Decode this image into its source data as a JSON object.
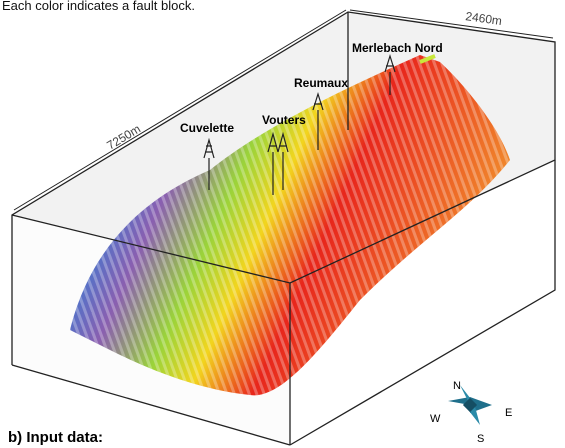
{
  "caption": "Each color indicates a fault block.",
  "dimensions": {
    "width": "2460m",
    "length": "7250m"
  },
  "wells": [
    "Cuvelette",
    "Vouters",
    "Reumaux",
    "Merlebach Nord"
  ],
  "compass": {
    "north": "N",
    "west": "W",
    "east": "E",
    "south": "S"
  },
  "panel_label": "b) Input data:"
}
